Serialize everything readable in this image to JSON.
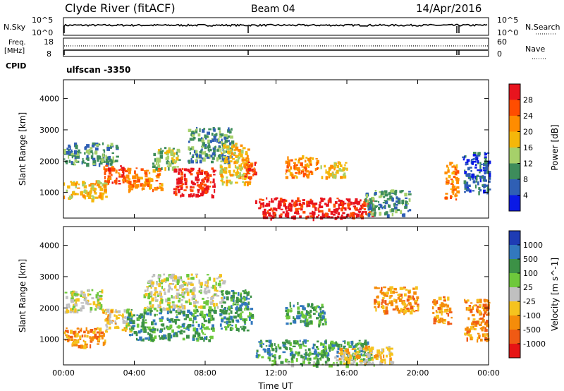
{
  "header": {
    "title": "Clyde River (fitACF)",
    "beam": "Beam 04",
    "date": "14/Apr/2016"
  },
  "status_panels": {
    "nsky": {
      "label": "N.Sky",
      "ticks": [
        "10^5",
        "10^0"
      ]
    },
    "nsearch": {
      "label": "N.Search",
      "ticks": [
        "10^5",
        "10^0"
      ]
    },
    "freq": {
      "label_line1": "Freq.",
      "label_line2": "[MHz]",
      "ticks": [
        "18",
        "8"
      ]
    },
    "nave": {
      "label": "Nave",
      "ticks": [
        "60",
        "0"
      ]
    },
    "cpid": {
      "label": "CPID",
      "value": "ulfscan -3350"
    }
  },
  "chart_data": [
    {
      "type": "heatmap",
      "name": "power",
      "x_label": "",
      "y_label": "Slant Range [km]",
      "x_range_hours": [
        0,
        24
      ],
      "y_range_km": [
        180,
        4600
      ],
      "y_ticks": [
        1000,
        2000,
        3000,
        4000
      ],
      "colorbar": {
        "label": "Power [dB]",
        "ticks": [
          "28",
          "24",
          "20",
          "16",
          "12",
          "8",
          "4"
        ],
        "colors": [
          "#e8141e",
          "#ff4d00",
          "#ff8c00",
          "#f5b70a",
          "#a6d06a",
          "#3d8c5b",
          "#2f5fb4",
          "#0a19e6"
        ]
      },
      "regions": [
        {
          "t0": 0.0,
          "t1": 2.4,
          "r0": 800,
          "r1": 1400,
          "level": 4
        },
        {
          "t0": 0.0,
          "t1": 3.0,
          "r0": 1900,
          "r1": 2600,
          "level": 2
        },
        {
          "t0": 2.2,
          "t1": 3.6,
          "r0": 1300,
          "r1": 1900,
          "level": 6
        },
        {
          "t0": 3.5,
          "t1": 5.5,
          "r0": 1100,
          "r1": 1800,
          "level": 5
        },
        {
          "t0": 5.0,
          "t1": 6.5,
          "r0": 1800,
          "r1": 2500,
          "level": 3
        },
        {
          "t0": 6.2,
          "t1": 8.5,
          "r0": 900,
          "r1": 1800,
          "level": 7
        },
        {
          "t0": 7.0,
          "t1": 9.5,
          "r0": 2000,
          "r1": 3100,
          "level": 2
        },
        {
          "t0": 8.8,
          "t1": 10.4,
          "r0": 1300,
          "r1": 2600,
          "level": 4
        },
        {
          "t0": 10.2,
          "t1": 10.8,
          "r0": 1500,
          "r1": 2000,
          "level": 6
        },
        {
          "t0": 10.8,
          "t1": 17.5,
          "r0": 200,
          "r1": 850,
          "level": 7
        },
        {
          "t0": 12.5,
          "t1": 14.3,
          "r0": 1500,
          "r1": 2200,
          "level": 5
        },
        {
          "t0": 14.5,
          "t1": 16.0,
          "r0": 1500,
          "r1": 2000,
          "level": 4
        },
        {
          "t0": 17.0,
          "t1": 19.5,
          "r0": 300,
          "r1": 1100,
          "level": 2
        },
        {
          "t0": 21.5,
          "t1": 22.2,
          "r0": 800,
          "r1": 2000,
          "level": 5
        },
        {
          "t0": 22.5,
          "t1": 24.0,
          "r0": 1000,
          "r1": 2300,
          "level": 1
        }
      ]
    },
    {
      "type": "heatmap",
      "name": "velocity",
      "x_label": "Time UT",
      "y_label": "Slant Range [km]",
      "x_range_hours": [
        0,
        24
      ],
      "y_range_km": [
        180,
        4600
      ],
      "y_ticks": [
        1000,
        2000,
        3000,
        4000
      ],
      "x_ticks": [
        "00:00",
        "04:00",
        "08:00",
        "12:00",
        "16:00",
        "20:00",
        "00:00"
      ],
      "colorbar": {
        "label": "Velocity [m s^-1]",
        "ticks": [
          "1000",
          "500",
          "100",
          "25",
          "-25",
          "-100",
          "-500",
          "-1000"
        ],
        "colors": [
          "#1e3cb4",
          "#3278be",
          "#3c9146",
          "#6ec83c",
          "#c0c0c0",
          "#f5c31e",
          "#f58c0a",
          "#f05a14",
          "#e61414"
        ]
      },
      "regions": [
        {
          "t0": 0.0,
          "t1": 2.4,
          "r0": 800,
          "r1": 1400,
          "level": 2
        },
        {
          "t0": 0.0,
          "t1": 2.2,
          "r0": 1900,
          "r1": 2600,
          "level": 4
        },
        {
          "t0": 2.2,
          "t1": 3.8,
          "r0": 1300,
          "r1": 2000,
          "level": 3
        },
        {
          "t0": 3.5,
          "t1": 8.5,
          "r0": 1000,
          "r1": 2000,
          "level": 6
        },
        {
          "t0": 4.5,
          "t1": 9.0,
          "r0": 2000,
          "r1": 3100,
          "level": 4
        },
        {
          "t0": 8.8,
          "t1": 10.6,
          "r0": 1300,
          "r1": 2600,
          "level": 6
        },
        {
          "t0": 10.8,
          "t1": 17.3,
          "r0": 450,
          "r1": 1000,
          "level": 6
        },
        {
          "t0": 11.5,
          "t1": 17.5,
          "r0": 200,
          "r1": 450,
          "level": 5
        },
        {
          "t0": 12.5,
          "t1": 14.8,
          "r0": 1500,
          "r1": 2200,
          "level": 6
        },
        {
          "t0": 15.5,
          "t1": 18.5,
          "r0": 250,
          "r1": 800,
          "level": 3
        },
        {
          "t0": 17.5,
          "t1": 20.0,
          "r0": 1900,
          "r1": 2700,
          "level": 2
        },
        {
          "t0": 20.8,
          "t1": 21.9,
          "r0": 1500,
          "r1": 2400,
          "level": 2
        },
        {
          "t0": 22.6,
          "t1": 24.0,
          "r0": 1000,
          "r1": 2300,
          "level": 2
        }
      ]
    }
  ]
}
